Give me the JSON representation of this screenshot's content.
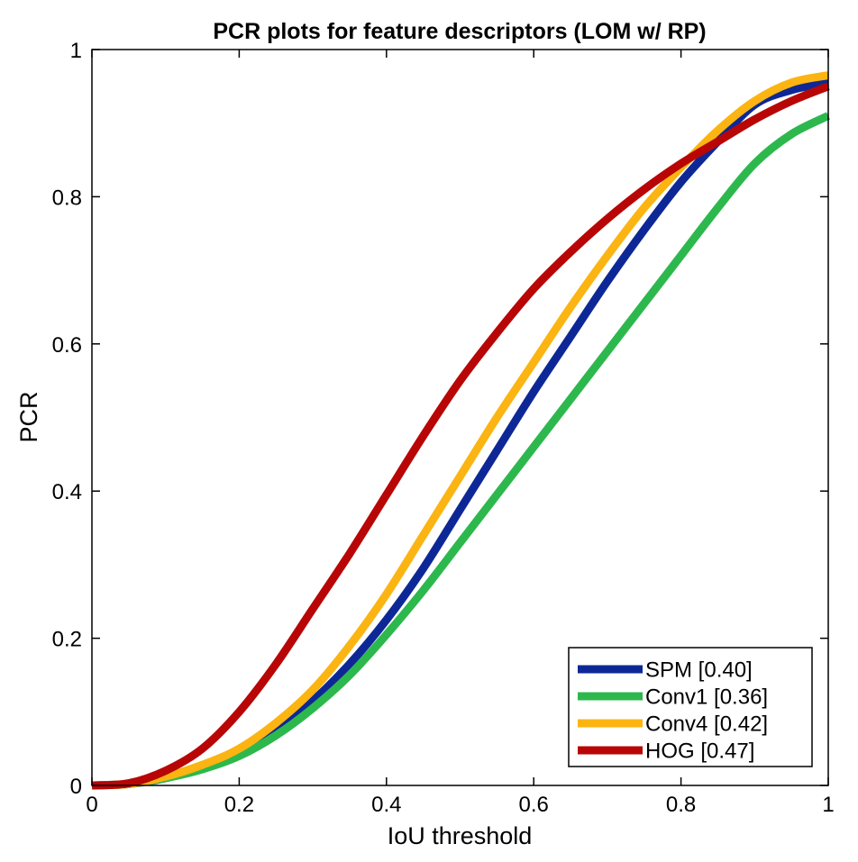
{
  "chart_data": {
    "type": "line",
    "title": "PCR plots for feature descriptors (LOM w/ RP)",
    "xlabel": "IoU threshold",
    "ylabel": "PCR",
    "xlim": [
      0,
      1
    ],
    "ylim": [
      0,
      1
    ],
    "grid": false,
    "legend_position": "bottom-right",
    "xticks": [
      0,
      0.2,
      0.4,
      0.6,
      0.8,
      1
    ],
    "xtick_labels": [
      "0",
      "0.2",
      "0.4",
      "0.6",
      "0.8",
      "1"
    ],
    "yticks": [
      0,
      0.2,
      0.4,
      0.6,
      0.8,
      1
    ],
    "ytick_labels": [
      "0",
      "0.2",
      "0.4",
      "0.6",
      "0.8",
      "1"
    ],
    "x": [
      0,
      0.05,
      0.1,
      0.15,
      0.2,
      0.25,
      0.3,
      0.35,
      0.4,
      0.45,
      0.5,
      0.55,
      0.6,
      0.65,
      0.7,
      0.75,
      0.8,
      0.85,
      0.9,
      0.95,
      1
    ],
    "series": [
      {
        "name": "SPM [0.40]",
        "color": "#0d2896",
        "values": [
          0,
          0.002,
          0.01,
          0.025,
          0.045,
          0.075,
          0.115,
          0.165,
          0.225,
          0.295,
          0.375,
          0.455,
          0.535,
          0.61,
          0.685,
          0.755,
          0.82,
          0.875,
          0.925,
          0.945,
          0.955
        ]
      },
      {
        "name": "Conv1 [0.36]",
        "color": "#2db84d",
        "values": [
          0,
          0.002,
          0.01,
          0.022,
          0.04,
          0.068,
          0.105,
          0.15,
          0.205,
          0.265,
          0.33,
          0.395,
          0.46,
          0.525,
          0.59,
          0.655,
          0.72,
          0.785,
          0.845,
          0.885,
          0.91
        ]
      },
      {
        "name": "Conv4 [0.42]",
        "color": "#fbb411",
        "values": [
          0,
          0.002,
          0.012,
          0.028,
          0.05,
          0.085,
          0.13,
          0.19,
          0.26,
          0.34,
          0.42,
          0.5,
          0.575,
          0.65,
          0.72,
          0.785,
          0.84,
          0.89,
          0.93,
          0.955,
          0.965
        ]
      },
      {
        "name": "HOG [0.47]",
        "color": "#b80606",
        "values": [
          0,
          0.003,
          0.02,
          0.05,
          0.1,
          0.165,
          0.24,
          0.315,
          0.395,
          0.475,
          0.55,
          0.615,
          0.675,
          0.725,
          0.77,
          0.81,
          0.845,
          0.875,
          0.905,
          0.93,
          0.95
        ]
      }
    ]
  }
}
